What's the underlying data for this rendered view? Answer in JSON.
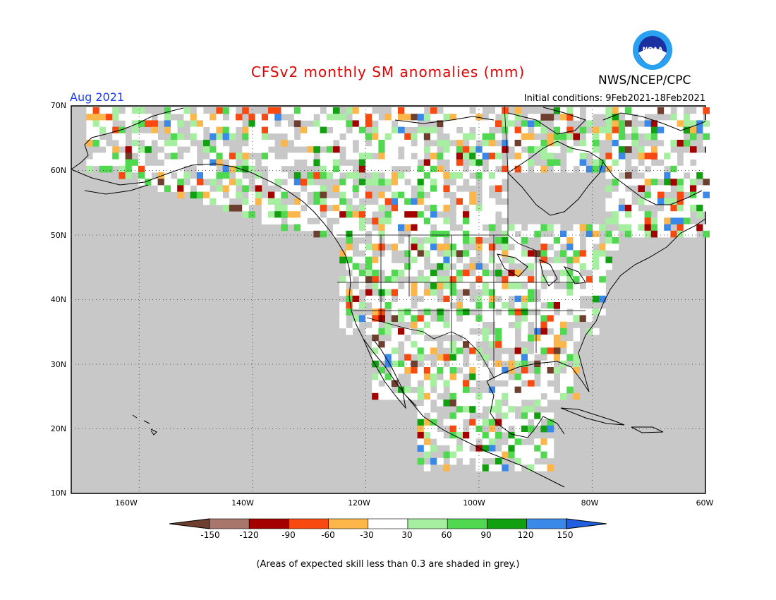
{
  "header": {
    "title": "CFSv2 monthly SM anomalies (mm)",
    "month": "Aug 2021",
    "initial_conditions": "Initial conditions: 9Feb2021-18Feb2021",
    "org": "NWS/NCEP/CPC",
    "logo_text": "NOAA"
  },
  "map": {
    "lon_range": [
      -172,
      -60
    ],
    "lat_range": [
      10,
      70
    ],
    "background_color": "#c8c8c8",
    "lat_labels": [
      "70N",
      "60N",
      "50N",
      "40N",
      "30N",
      "20N",
      "10N"
    ],
    "lon_labels": [
      "160W",
      "140W",
      "120W",
      "100W",
      "80W",
      "60W"
    ]
  },
  "colorbar": {
    "tick_labels": [
      "-150",
      "-120",
      "-90",
      "-60",
      "-30",
      "30",
      "60",
      "90",
      "120",
      "150"
    ],
    "colors": [
      "#6e3f2e",
      "#a8766a",
      "#a50000",
      "#f84a10",
      "#fdb64a",
      "#ffffff",
      "#a6eea0",
      "#50d850",
      "#10a010",
      "#3a88e8",
      "#2060e0"
    ]
  },
  "footnote": "(Areas of expected skill less than 0.3 are shaded in grey.)"
}
